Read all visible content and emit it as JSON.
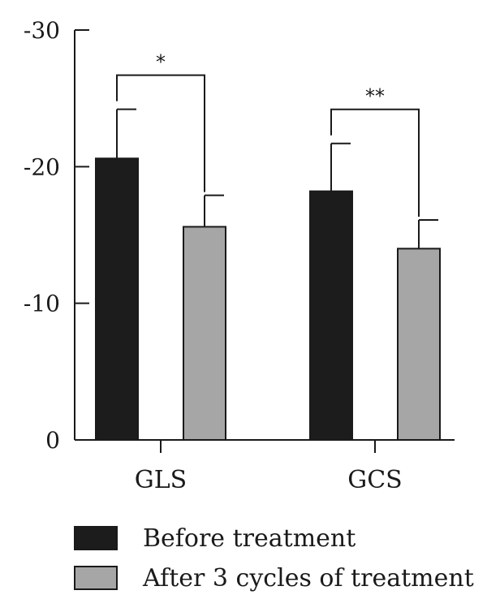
{
  "chart_data": {
    "type": "bar",
    "categories": [
      "GLS",
      "GCS"
    ],
    "series": [
      {
        "name": "Before treatment",
        "values": [
          -20.6,
          -18.2
        ],
        "error": [
          3.6,
          3.5
        ],
        "color": "#1c1c1c"
      },
      {
        "name": "After 3 cycles of treatment",
        "values": [
          -15.6,
          -14.0
        ],
        "error": [
          2.3,
          2.1
        ],
        "color": "#a6a6a6"
      }
    ],
    "ylim": [
      0,
      -30
    ],
    "yticks": [
      {
        "value": 0,
        "label": "0"
      },
      {
        "value": -10,
        "label": "-10"
      },
      {
        "value": -20,
        "label": "-20"
      },
      {
        "value": -30,
        "label": "-30"
      }
    ],
    "significance": [
      {
        "category": "GLS",
        "label": "*"
      },
      {
        "category": "GCS",
        "label": "**"
      }
    ],
    "xlabel": "",
    "ylabel": "",
    "grid": false,
    "legend_position": "bottom"
  }
}
